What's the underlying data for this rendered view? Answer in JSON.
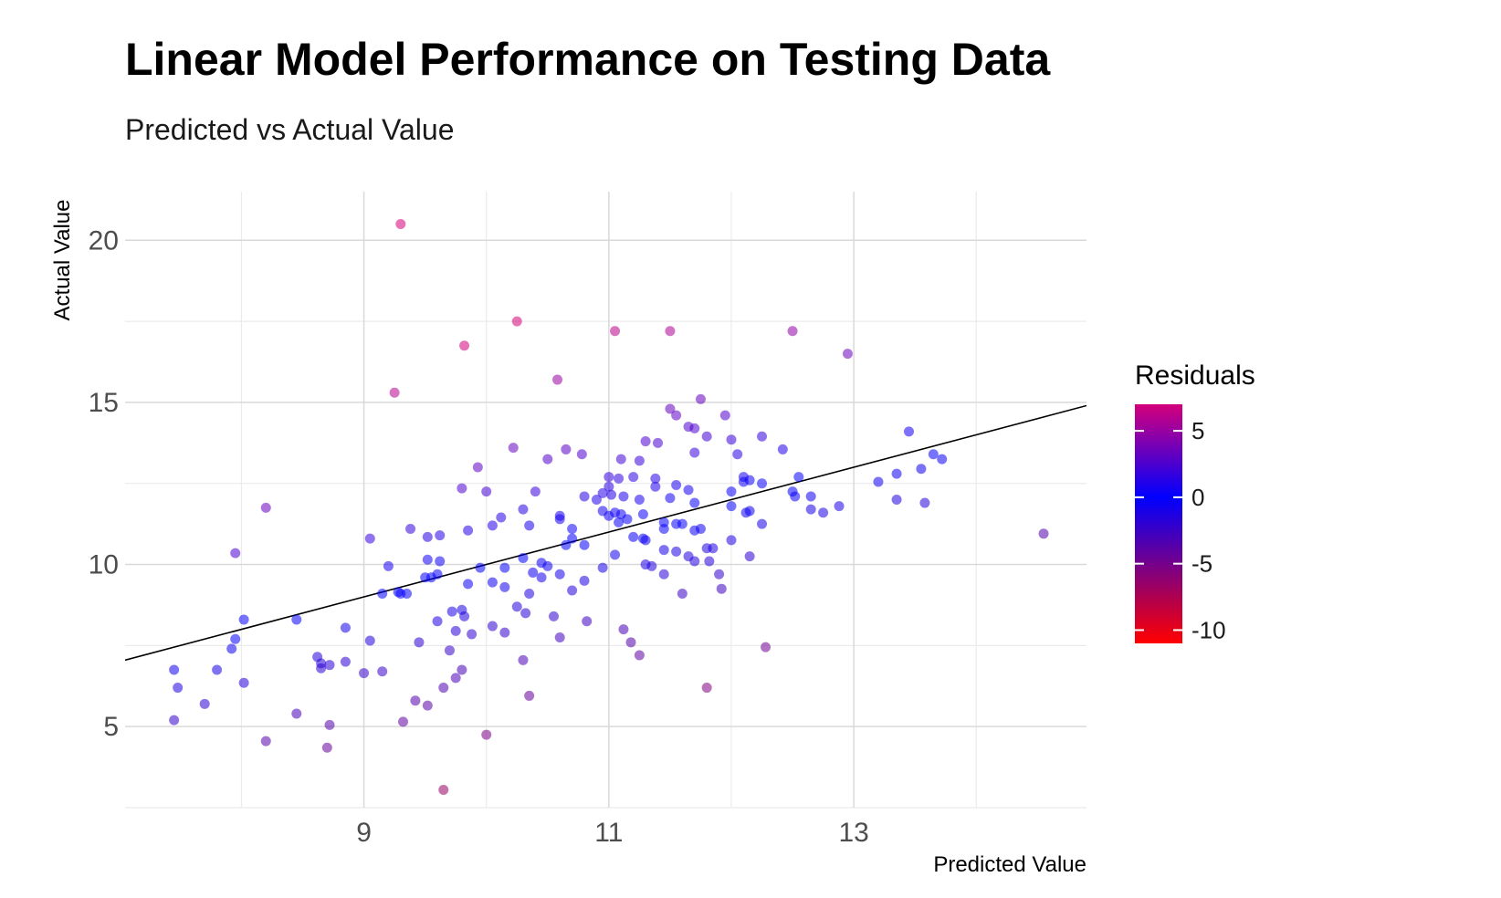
{
  "chart_data": {
    "type": "scatter",
    "title": "Linear Model Performance on Testing Data",
    "subtitle": "Predicted vs Actual Value",
    "xlabel": "Predicted Value",
    "ylabel": "Actual Value",
    "xlim": [
      7.05,
      14.9
    ],
    "ylim": [
      2.5,
      21.5
    ],
    "x_ticks": [
      9,
      11,
      13
    ],
    "x_tick_labels": [
      "9",
      "11",
      "13"
    ],
    "x_minor_gridlines": [
      8,
      10,
      12,
      14
    ],
    "y_ticks": [
      5,
      10,
      15,
      20
    ],
    "y_tick_labels": [
      "5",
      "10",
      "15",
      "20"
    ],
    "y_minor_gridlines": [
      2.5,
      7.5,
      12.5,
      17.5
    ],
    "grid": true,
    "reference_line": {
      "intercept": 0,
      "slope": 1,
      "color": "#000000"
    },
    "color_legend": {
      "title": "Residuals",
      "range": [
        -11,
        7
      ],
      "ticks": [
        5,
        0,
        -5,
        -10
      ],
      "tick_labels": [
        "5",
        "0",
        "-5",
        "-10"
      ],
      "colors": {
        "high": "#d4007a",
        "mid": "#0000ff",
        "low": "#ff0000"
      },
      "position": "right"
    },
    "points": [
      [
        9.3,
        20.5
      ],
      [
        10.25,
        17.5
      ],
      [
        9.82,
        16.75
      ],
      [
        11.05,
        17.2
      ],
      [
        11.5,
        17.2
      ],
      [
        12.5,
        17.2
      ],
      [
        12.95,
        16.5
      ],
      [
        10.58,
        15.7
      ],
      [
        9.25,
        15.3
      ],
      [
        11.75,
        15.1
      ],
      [
        11.5,
        14.8
      ],
      [
        11.55,
        14.6
      ],
      [
        11.95,
        14.6
      ],
      [
        11.65,
        14.25
      ],
      [
        11.7,
        14.2
      ],
      [
        12.0,
        13.85
      ],
      [
        12.25,
        13.95
      ],
      [
        11.8,
        13.95
      ],
      [
        13.45,
        14.1
      ],
      [
        11.3,
        13.8
      ],
      [
        11.4,
        13.75
      ],
      [
        10.22,
        13.6
      ],
      [
        10.65,
        13.55
      ],
      [
        10.78,
        13.4
      ],
      [
        11.7,
        13.45
      ],
      [
        12.05,
        13.4
      ],
      [
        12.42,
        13.55
      ],
      [
        10.5,
        13.25
      ],
      [
        11.1,
        13.25
      ],
      [
        11.25,
        13.2
      ],
      [
        13.65,
        13.4
      ],
      [
        13.72,
        13.25
      ],
      [
        13.55,
        12.95
      ],
      [
        13.35,
        12.8
      ],
      [
        13.2,
        12.55
      ],
      [
        12.55,
        12.7
      ],
      [
        12.1,
        12.7
      ],
      [
        12.15,
        12.6
      ],
      [
        12.1,
        12.55
      ],
      [
        9.93,
        13.0
      ],
      [
        9.8,
        12.35
      ],
      [
        10.0,
        12.25
      ],
      [
        10.4,
        12.25
      ],
      [
        11.0,
        12.7
      ],
      [
        11.08,
        12.65
      ],
      [
        11.2,
        12.7
      ],
      [
        11.38,
        12.65
      ],
      [
        11.38,
        12.4
      ],
      [
        11.55,
        12.45
      ],
      [
        11.65,
        12.3
      ],
      [
        12.25,
        12.5
      ],
      [
        12.5,
        12.25
      ],
      [
        12.52,
        12.1
      ],
      [
        12.65,
        12.1
      ],
      [
        12.0,
        12.25
      ],
      [
        11.0,
        12.4
      ],
      [
        10.95,
        12.2
      ],
      [
        11.02,
        12.15
      ],
      [
        11.12,
        12.1
      ],
      [
        11.25,
        12.0
      ],
      [
        10.8,
        12.1
      ],
      [
        10.9,
        12.0
      ],
      [
        11.5,
        12.05
      ],
      [
        11.7,
        11.9
      ],
      [
        12.0,
        11.8
      ],
      [
        12.15,
        11.65
      ],
      [
        12.65,
        11.7
      ],
      [
        12.75,
        11.6
      ],
      [
        12.88,
        11.8
      ],
      [
        13.35,
        12.0
      ],
      [
        13.58,
        11.9
      ],
      [
        11.05,
        11.6
      ],
      [
        11.0,
        11.5
      ],
      [
        10.95,
        11.65
      ],
      [
        11.1,
        11.55
      ],
      [
        11.28,
        11.55
      ],
      [
        11.15,
        11.4
      ],
      [
        11.08,
        11.3
      ],
      [
        11.45,
        11.3
      ],
      [
        11.55,
        11.25
      ],
      [
        11.6,
        11.25
      ],
      [
        11.45,
        11.1
      ],
      [
        11.7,
        11.05
      ],
      [
        11.75,
        11.1
      ],
      [
        12.12,
        11.6
      ],
      [
        12.25,
        11.25
      ],
      [
        11.28,
        10.8
      ],
      [
        11.3,
        10.75
      ],
      [
        11.2,
        10.85
      ],
      [
        10.6,
        11.5
      ],
      [
        10.6,
        11.4
      ],
      [
        10.7,
        11.1
      ],
      [
        10.7,
        10.8
      ],
      [
        10.65,
        10.6
      ],
      [
        10.8,
        10.6
      ],
      [
        10.3,
        11.7
      ],
      [
        10.35,
        11.2
      ],
      [
        10.12,
        11.45
      ],
      [
        9.85,
        11.05
      ],
      [
        10.05,
        11.2
      ],
      [
        9.62,
        10.9
      ],
      [
        9.52,
        10.85
      ],
      [
        9.38,
        11.1
      ],
      [
        9.05,
        10.8
      ],
      [
        7.95,
        10.35
      ],
      [
        8.2,
        11.75
      ],
      [
        9.2,
        9.95
      ],
      [
        9.52,
        10.15
      ],
      [
        9.62,
        10.1
      ],
      [
        9.6,
        9.7
      ],
      [
        9.5,
        9.6
      ],
      [
        9.55,
        9.6
      ],
      [
        9.95,
        9.9
      ],
      [
        10.15,
        9.9
      ],
      [
        10.3,
        10.2
      ],
      [
        10.45,
        10.05
      ],
      [
        10.5,
        9.95
      ],
      [
        10.38,
        9.75
      ],
      [
        10.6,
        9.7
      ],
      [
        9.85,
        9.4
      ],
      [
        10.05,
        9.45
      ],
      [
        10.15,
        9.3
      ],
      [
        10.45,
        9.6
      ],
      [
        10.35,
        9.1
      ],
      [
        9.15,
        9.1
      ],
      [
        9.3,
        9.1
      ],
      [
        9.35,
        9.1
      ],
      [
        9.28,
        9.15
      ],
      [
        10.8,
        9.5
      ],
      [
        10.95,
        9.9
      ],
      [
        11.05,
        10.3
      ],
      [
        11.3,
        10.0
      ],
      [
        11.35,
        9.95
      ],
      [
        11.45,
        10.45
      ],
      [
        11.55,
        10.4
      ],
      [
        11.65,
        10.25
      ],
      [
        11.7,
        10.1
      ],
      [
        11.82,
        10.1
      ],
      [
        11.85,
        10.5
      ],
      [
        11.8,
        10.5
      ],
      [
        12.0,
        10.75
      ],
      [
        12.15,
        10.25
      ],
      [
        11.9,
        9.7
      ],
      [
        11.92,
        9.25
      ],
      [
        11.6,
        9.1
      ],
      [
        11.45,
        9.7
      ],
      [
        10.7,
        9.2
      ],
      [
        10.82,
        8.25
      ],
      [
        10.55,
        8.4
      ],
      [
        10.32,
        8.5
      ],
      [
        10.25,
        8.7
      ],
      [
        10.05,
        8.1
      ],
      [
        10.15,
        7.9
      ],
      [
        10.6,
        7.75
      ],
      [
        10.3,
        7.05
      ],
      [
        10.35,
        5.95
      ],
      [
        10.0,
        4.75
      ],
      [
        9.65,
        3.05
      ],
      [
        9.72,
        8.55
      ],
      [
        9.8,
        8.6
      ],
      [
        9.82,
        8.4
      ],
      [
        9.75,
        7.95
      ],
      [
        9.88,
        7.85
      ],
      [
        9.6,
        8.25
      ],
      [
        9.45,
        7.6
      ],
      [
        9.7,
        7.35
      ],
      [
        9.8,
        6.75
      ],
      [
        9.75,
        6.5
      ],
      [
        9.65,
        6.2
      ],
      [
        9.52,
        5.65
      ],
      [
        9.42,
        5.8
      ],
      [
        9.32,
        5.15
      ],
      [
        9.05,
        7.65
      ],
      [
        8.85,
        8.05
      ],
      [
        8.85,
        7.0
      ],
      [
        8.72,
        6.9
      ],
      [
        8.62,
        7.15
      ],
      [
        8.65,
        6.95
      ],
      [
        8.65,
        6.8
      ],
      [
        9.0,
        6.65
      ],
      [
        9.15,
        6.7
      ],
      [
        8.45,
        8.3
      ],
      [
        8.02,
        8.3
      ],
      [
        7.95,
        7.7
      ],
      [
        7.92,
        7.4
      ],
      [
        7.8,
        6.75
      ],
      [
        8.02,
        6.35
      ],
      [
        7.45,
        6.75
      ],
      [
        7.48,
        6.2
      ],
      [
        7.7,
        5.7
      ],
      [
        7.45,
        5.2
      ],
      [
        8.45,
        5.4
      ],
      [
        8.2,
        4.55
      ],
      [
        8.72,
        5.05
      ],
      [
        8.7,
        4.35
      ],
      [
        11.12,
        8.0
      ],
      [
        11.18,
        7.6
      ],
      [
        11.25,
        7.2
      ],
      [
        11.8,
        6.2
      ],
      [
        12.28,
        7.45
      ],
      [
        14.55,
        10.95
      ]
    ]
  }
}
